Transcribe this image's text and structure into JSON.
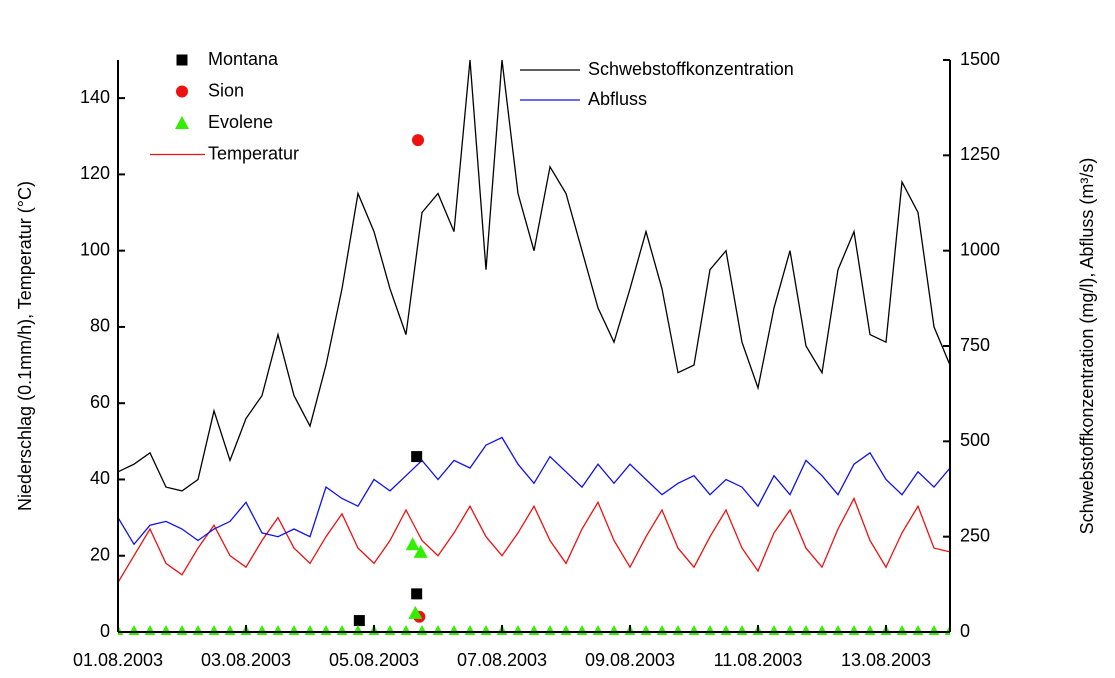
{
  "chart_data": {
    "type": "line",
    "x": [
      "2003-08-01T00:00",
      "2003-08-01T06:00",
      "2003-08-01T12:00",
      "2003-08-01T18:00",
      "2003-08-02T00:00",
      "2003-08-02T06:00",
      "2003-08-02T12:00",
      "2003-08-02T18:00",
      "2003-08-03T00:00",
      "2003-08-03T06:00",
      "2003-08-03T12:00",
      "2003-08-03T18:00",
      "2003-08-04T00:00",
      "2003-08-04T06:00",
      "2003-08-04T12:00",
      "2003-08-04T18:00",
      "2003-08-05T00:00",
      "2003-08-05T06:00",
      "2003-08-05T12:00",
      "2003-08-05T18:00",
      "2003-08-06T00:00",
      "2003-08-06T06:00",
      "2003-08-06T12:00",
      "2003-08-06T18:00",
      "2003-08-07T00:00",
      "2003-08-07T06:00",
      "2003-08-07T12:00",
      "2003-08-07T18:00",
      "2003-08-08T00:00",
      "2003-08-08T06:00",
      "2003-08-08T12:00",
      "2003-08-08T18:00",
      "2003-08-09T00:00",
      "2003-08-09T06:00",
      "2003-08-09T12:00",
      "2003-08-09T18:00",
      "2003-08-10T00:00",
      "2003-08-10T06:00",
      "2003-08-10T12:00",
      "2003-08-10T18:00",
      "2003-08-11T00:00",
      "2003-08-11T06:00",
      "2003-08-11T12:00",
      "2003-08-11T18:00",
      "2003-08-12T00:00",
      "2003-08-12T06:00",
      "2003-08-12T12:00",
      "2003-08-12T18:00",
      "2003-08-13T00:00",
      "2003-08-13T06:00",
      "2003-08-13T12:00",
      "2003-08-13T18:00",
      "2003-08-14T00:00"
    ],
    "series": [
      {
        "name": "Montana",
        "type": "scatter",
        "marker": "square",
        "color": "#000000",
        "x": [
          "2003-08-04T18:30",
          "2003-08-05T16:00",
          "2003-08-05T16:00"
        ],
        "values": [
          3,
          46,
          10
        ]
      },
      {
        "name": "Sion",
        "type": "scatter",
        "marker": "circle",
        "color": "#ee1111",
        "x": [
          "2003-08-05T16:30",
          "2003-08-05T17:00"
        ],
        "values": [
          129,
          4
        ]
      },
      {
        "name": "Evolene",
        "type": "scatter",
        "marker": "triangle",
        "color": "#33ee00",
        "x": [
          "2003-08-01T00:00",
          "2003-08-01T06:00",
          "2003-08-01T12:00",
          "2003-08-01T18:00",
          "2003-08-02T00:00",
          "2003-08-02T06:00",
          "2003-08-02T12:00",
          "2003-08-02T18:00",
          "2003-08-03T00:00",
          "2003-08-03T06:00",
          "2003-08-03T12:00",
          "2003-08-03T18:00",
          "2003-08-04T00:00",
          "2003-08-04T06:00",
          "2003-08-04T12:00",
          "2003-08-04T18:00",
          "2003-08-05T00:00",
          "2003-08-05T06:00",
          "2003-08-05T12:00",
          "2003-08-05T18:00",
          "2003-08-06T00:00",
          "2003-08-06T06:00",
          "2003-08-06T12:00",
          "2003-08-06T18:00",
          "2003-08-07T00:00",
          "2003-08-07T06:00",
          "2003-08-07T12:00",
          "2003-08-07T18:00",
          "2003-08-08T00:00",
          "2003-08-08T06:00",
          "2003-08-08T12:00",
          "2003-08-08T18:00",
          "2003-08-09T00:00",
          "2003-08-09T06:00",
          "2003-08-09T12:00",
          "2003-08-09T18:00",
          "2003-08-10T00:00",
          "2003-08-10T06:00",
          "2003-08-10T12:00",
          "2003-08-10T18:00",
          "2003-08-11T00:00",
          "2003-08-11T06:00",
          "2003-08-11T12:00",
          "2003-08-11T18:00",
          "2003-08-12T00:00",
          "2003-08-12T06:00",
          "2003-08-12T12:00",
          "2003-08-12T18:00",
          "2003-08-13T00:00",
          "2003-08-13T06:00",
          "2003-08-13T12:00",
          "2003-08-13T18:00",
          "2003-08-14T00:00",
          "2003-08-05T14:30",
          "2003-08-05T17:30",
          "2003-08-05T15:30"
        ],
        "values": [
          0,
          0,
          0,
          0,
          0,
          0,
          0,
          0,
          0,
          0,
          0,
          0,
          0,
          0,
          0,
          0,
          0,
          0,
          0,
          0,
          0,
          0,
          0,
          0,
          0,
          0,
          0,
          0,
          0,
          0,
          0,
          0,
          0,
          0,
          0,
          0,
          0,
          0,
          0,
          0,
          0,
          0,
          0,
          0,
          0,
          0,
          0,
          0,
          0,
          0,
          0,
          0,
          0,
          23,
          21,
          5
        ]
      },
      {
        "name": "Temperatur",
        "color": "#ee1111",
        "values": [
          13,
          20,
          27,
          18,
          15,
          22,
          28,
          20,
          17,
          24,
          30,
          22,
          18,
          25,
          31,
          22,
          18,
          24,
          32,
          24,
          20,
          26,
          33,
          25,
          20,
          26,
          33,
          24,
          18,
          27,
          34,
          24,
          17,
          25,
          32,
          22,
          17,
          25,
          32,
          22,
          16,
          26,
          32,
          22,
          17,
          27,
          35,
          24,
          17,
          26,
          33,
          22,
          21
        ]
      },
      {
        "name": "Schwebstoffkonzentration",
        "color": "#000000",
        "axis": "y2",
        "values": [
          420,
          440,
          470,
          380,
          370,
          400,
          580,
          450,
          560,
          620,
          780,
          620,
          540,
          700,
          900,
          1150,
          1050,
          900,
          780,
          1100,
          1150,
          1050,
          1500,
          950,
          1500,
          1150,
          1000,
          1220,
          1150,
          1000,
          850,
          760,
          900,
          1050,
          900,
          680,
          700,
          950,
          1000,
          760,
          640,
          850,
          1000,
          750,
          680,
          950,
          1050,
          780,
          760,
          1180,
          1100,
          800,
          700
        ]
      },
      {
        "name": "Abfluss",
        "color": "#1111ee",
        "axis": "y2",
        "values": [
          300,
          230,
          280,
          290,
          270,
          240,
          270,
          290,
          340,
          260,
          250,
          270,
          250,
          380,
          350,
          330,
          400,
          370,
          410,
          450,
          400,
          450,
          430,
          490,
          510,
          440,
          390,
          460,
          420,
          380,
          440,
          390,
          440,
          400,
          360,
          390,
          410,
          360,
          400,
          380,
          330,
          410,
          360,
          450,
          410,
          360,
          440,
          470,
          400,
          360,
          420,
          380,
          430
        ]
      }
    ],
    "ylabel": "Niederschlag (0.1mm/h), Temperatur (°C)",
    "y2label": "Schwebstoffkonzentration (mg/l), Abfluss (m³/s)",
    "xlim": [
      "2003-08-01T00:00",
      "2003-08-14T00:00"
    ],
    "xticks": [
      {
        "value": "2003-08-01T00:00",
        "label": "01.08.2003"
      },
      {
        "value": "2003-08-03T00:00",
        "label": "03.08.2003"
      },
      {
        "value": "2003-08-05T00:00",
        "label": "05.08.2003"
      },
      {
        "value": "2003-08-07T00:00",
        "label": "07.08.2003"
      },
      {
        "value": "2003-08-09T00:00",
        "label": "09.08.2003"
      },
      {
        "value": "2003-08-11T00:00",
        "label": "11.08.2003"
      },
      {
        "value": "2003-08-13T00:00",
        "label": "13.08.2003"
      }
    ],
    "ylim": [
      0,
      150
    ],
    "yticks": [
      0,
      20,
      40,
      60,
      80,
      100,
      120,
      140
    ],
    "y2lim": [
      0,
      1500
    ],
    "y2ticks": [
      0,
      250,
      500,
      750,
      1000,
      1250,
      1500
    ],
    "grid": false
  }
}
